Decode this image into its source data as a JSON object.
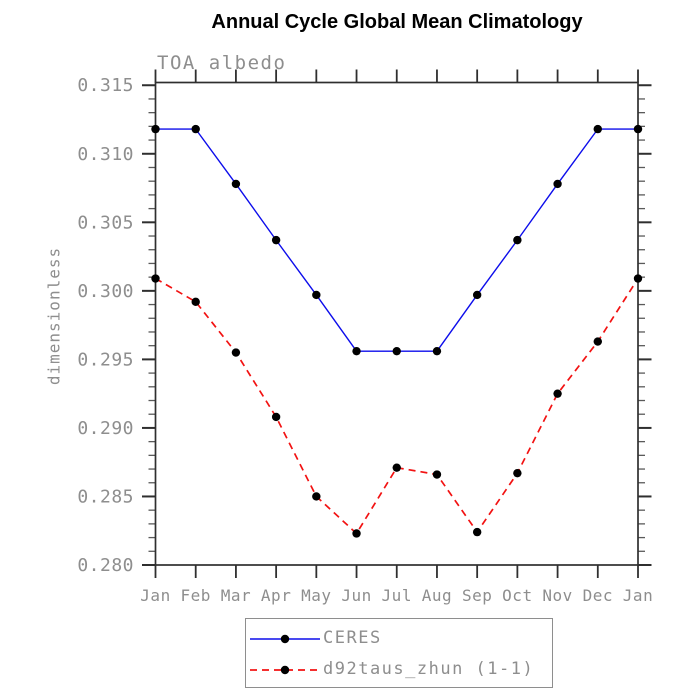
{
  "chart_data": {
    "type": "line",
    "title": "Annual Cycle Global Mean Climatology",
    "subtitle": "TOA albedo",
    "ylabel": "dimensionless",
    "xlabel": "",
    "categories": [
      "Jan",
      "Feb",
      "Mar",
      "Apr",
      "May",
      "Jun",
      "Jul",
      "Aug",
      "Sep",
      "Oct",
      "Nov",
      "Dec",
      "Jan"
    ],
    "ylim": [
      0.28,
      0.3152
    ],
    "yticks": {
      "values": [
        0.28,
        0.285,
        0.29,
        0.295,
        0.3,
        0.305,
        0.31,
        0.315
      ],
      "labels": [
        "0.280",
        "0.285",
        "0.290",
        "0.295",
        "0.300",
        "0.305",
        "0.310",
        "0.315"
      ],
      "minor_step": 0.001
    },
    "grid": false,
    "legend": {
      "position": "bottom-center",
      "border": true
    },
    "series": [
      {
        "name": "CERES",
        "color": "#0d0deb",
        "line_style": "solid",
        "line_width": 1.4,
        "marker": "filled-circle",
        "marker_color": "#000000",
        "values": [
          0.3118,
          0.3118,
          0.3078,
          0.3037,
          0.2997,
          0.2956,
          0.2956,
          0.2956,
          0.2997,
          0.3037,
          0.3078,
          0.3118,
          0.3118
        ]
      },
      {
        "name": "d92taus_zhun (1-1)",
        "color": "#f21212",
        "line_style": "dashed",
        "line_width": 1.7,
        "marker": "filled-circle",
        "marker_color": "#000000",
        "values": [
          0.3009,
          0.2992,
          0.2955,
          0.2908,
          0.285,
          0.2823,
          0.2871,
          0.2866,
          0.2824,
          0.2867,
          0.2925,
          0.2963,
          0.3009
        ]
      }
    ],
    "style": {
      "axis_color": "#2f2f2f",
      "minor_tick_color": "#5a5a5a",
      "text_color": "#8e8e8e",
      "title_color": "#000000",
      "legend_border_color": "#8e8e8e",
      "background": "#ffffff"
    }
  }
}
